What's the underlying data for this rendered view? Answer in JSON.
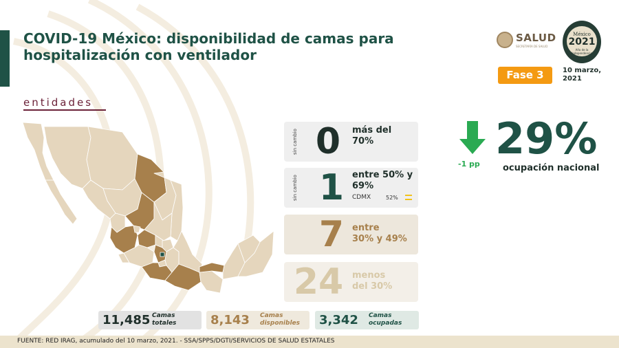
{
  "header": {
    "title_line1": "COVID-19 México: disponibilidad de camas para",
    "title_line2": "hospitalización con ventilador"
  },
  "logos": {
    "salud_name": "SALUD",
    "salud_sub": "SECRETARÍA DE SALUD",
    "seal_line1": "México",
    "seal_year": "2021",
    "seal_line3": "Año de la Independencia"
  },
  "phase_badge": "Fase 3",
  "date": {
    "line1": "10 marzo,",
    "line2": "2021"
  },
  "section_title": "entidades",
  "cards": [
    {
      "side_label": "sin cambio",
      "number": "0",
      "desc_line1": "más del",
      "desc_line2": "70%",
      "color": "#1f2f2a"
    },
    {
      "side_label": "sin cambio",
      "number": "1",
      "desc_line1": "entre 50% y",
      "desc_line2": "69%",
      "sub_label": "CDMX",
      "sub_value": "52%",
      "color": "#1f5246"
    },
    {
      "number": "7",
      "desc_line1": "entre",
      "desc_line2": "30% y 49%",
      "color": "#a7804c"
    },
    {
      "number": "24",
      "desc_line1": "menos",
      "desc_line2": "del 30%",
      "color": "#d8c9a8"
    }
  ],
  "national": {
    "change": "-1 pp",
    "percent": "29%",
    "label": "ocupación nacional",
    "arrow_color": "#2aaa52"
  },
  "stats": [
    {
      "value": "11,485",
      "label_line1": "Camas",
      "label_line2": "totales",
      "color": "#1f2f2a"
    },
    {
      "value": "8,143",
      "label_line1": "Camas",
      "label_line2": "disponibles",
      "color": "#a7804c"
    },
    {
      "value": "3,342",
      "label_line1": "Camas",
      "label_line2": "ocupadas",
      "color": "#1f5246"
    }
  ],
  "footer": "FUENTE: RED IRAG, acumulado del 10 marzo, 2021. -  SSA/SPPS/DGTI/SERVICIOS DE SALUD ESTATALES",
  "map_colors": {
    "base": "#e5d6bd",
    "mid": "#a7804c",
    "high": "#1f5246",
    "border": "#ffffff"
  }
}
